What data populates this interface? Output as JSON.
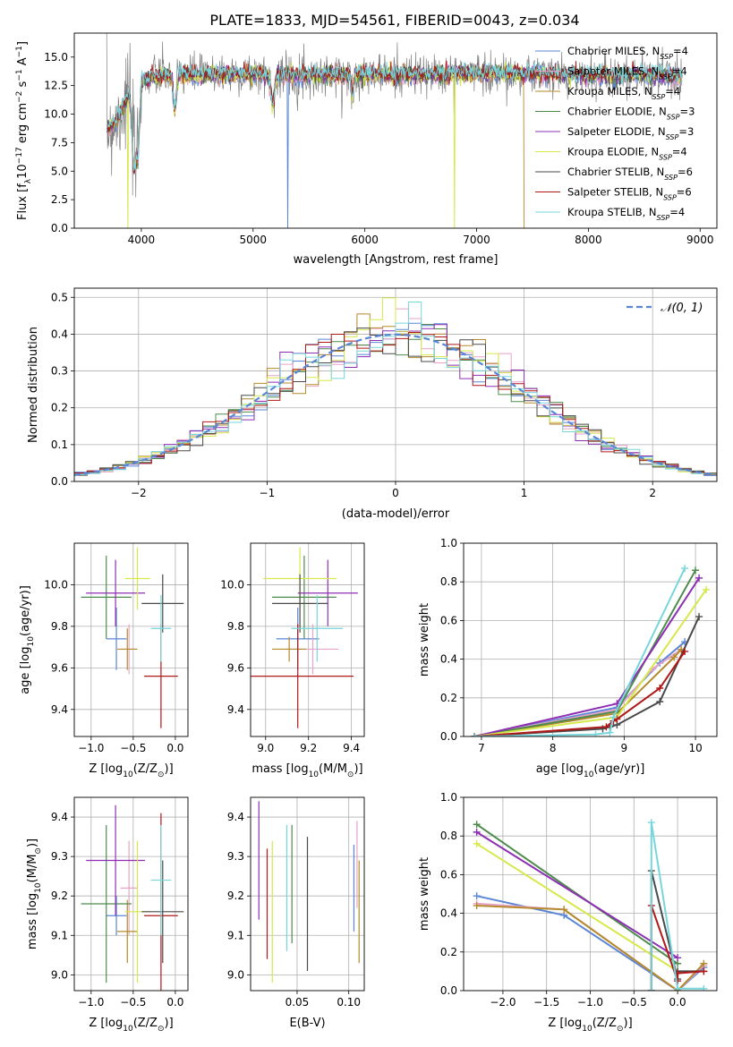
{
  "figure": {
    "title": "PLATE=1833, MJD=54561, FIBERID=0043, z=0.034"
  },
  "legend_entries": [
    {
      "label": "Chabrier MILES, N",
      "sub": "SSP",
      "suffix": "=4",
      "color": "#5b86d6"
    },
    {
      "label": "Salpeter MILES, N",
      "sub": "SSP",
      "suffix": "=4",
      "color": "#e8a2c8"
    },
    {
      "label": "Kroupa MILES, N",
      "sub": "SSP",
      "suffix": "=4",
      "color": "#b58a2c"
    },
    {
      "label": "Chabrier ELODIE, N",
      "sub": "SSP",
      "suffix": "=3",
      "color": "#4e8c4e"
    },
    {
      "label": "Salpeter ELODIE, N",
      "sub": "SSP",
      "suffix": "=3",
      "color": "#8e2fb3"
    },
    {
      "label": "Kroupa ELODIE, N",
      "sub": "SSP",
      "suffix": "=4",
      "color": "#d6e84a"
    },
    {
      "label": "Chabrier STELIB, N",
      "sub": "SSP",
      "suffix": "=6",
      "color": "#4a4a4a"
    },
    {
      "label": "Salpeter STELIB, N",
      "sub": "SSP",
      "suffix": "=6",
      "color": "#b01818"
    },
    {
      "label": "Kroupa STELIB, N",
      "sub": "SSP",
      "suffix": "=4",
      "color": "#76d6dc"
    }
  ],
  "chart_data": [
    {
      "id": "spectrum",
      "type": "line",
      "xlabel": "wavelength [Angstrom, rest frame]",
      "ylabel": "Flux [f",
      "ylabel_sub": "λ",
      "ylabel_rest": "10",
      "ylabel_sup1": "−17",
      "ylabel_mid": " erg cm",
      "ylabel_sup2": "−2",
      "ylabel_mid2": " s",
      "ylabel_sup3": "−1",
      "ylabel_mid3": " A",
      "ylabel_sup4": "−1",
      "ylabel_end": "]",
      "xlim": [
        3400,
        9150
      ],
      "ylim": [
        0,
        17.1
      ],
      "xticks": [
        4000,
        5000,
        6000,
        7000,
        8000,
        9000
      ],
      "yticks": [
        0.0,
        2.5,
        5.0,
        7.5,
        10.0,
        12.5,
        15.0
      ],
      "ytick_labels": [
        "0.0",
        "2.5",
        "5.0",
        "7.5",
        "10.0",
        "12.5",
        "15.0"
      ],
      "xrange_data": [
        3690,
        8840
      ],
      "continuum": [
        [
          3690,
          8.6
        ],
        [
          3800,
          9.8
        ],
        [
          3900,
          12.0
        ],
        [
          4000,
          13.0
        ],
        [
          4200,
          13.4
        ],
        [
          4500,
          13.5
        ],
        [
          5000,
          13.5
        ],
        [
          5500,
          13.4
        ],
        [
          6000,
          13.5
        ],
        [
          6500,
          13.4
        ],
        [
          7000,
          13.6
        ],
        [
          7500,
          13.5
        ],
        [
          8000,
          13.4
        ],
        [
          8500,
          13.4
        ],
        [
          8840,
          13.3
        ]
      ],
      "features": [
        {
          "name": "dip",
          "x": 3935,
          "depth": 7.0,
          "width": 25
        },
        {
          "name": "dip",
          "x": 3970,
          "depth": 5.5,
          "width": 20
        },
        {
          "name": "dip",
          "x": 4300,
          "depth": 3.0,
          "width": 20
        },
        {
          "name": "dip",
          "x": 5175,
          "depth": 2.5,
          "width": 25
        },
        {
          "name": "dip",
          "x": 5890,
          "depth": 2.0,
          "width": 15
        },
        {
          "name": "gap",
          "x": 5310,
          "series": "Chabrier MILES"
        },
        {
          "name": "gap",
          "x": 3880,
          "series": "Kroupa ELODIE"
        },
        {
          "name": "gap",
          "x": 6800,
          "series": "Kroupa ELODIE"
        },
        {
          "name": "cutoff",
          "x": 7420,
          "series": "Kroupa MILES"
        }
      ]
    },
    {
      "id": "residuals",
      "type": "histogram",
      "xlabel": "(data-model)/error",
      "ylabel": "Normed distribution",
      "legend": "𝒩(0, 1)",
      "xlim": [
        -2.5,
        2.5
      ],
      "ylim": [
        0,
        0.525
      ],
      "xticks": [
        -2,
        -1,
        0,
        1,
        2
      ],
      "xtick_labels": [
        "−2",
        "−1",
        "0",
        "1",
        "2"
      ],
      "yticks": [
        0.0,
        0.1,
        0.2,
        0.3,
        0.4,
        0.5
      ],
      "ytick_labels": [
        "0.0",
        "0.1",
        "0.2",
        "0.3",
        "0.4",
        "0.5"
      ],
      "bin_width": 0.1
    },
    {
      "id": "age_vs_z",
      "type": "scatter",
      "xlabel": "Z [log",
      "xlabel_sub": "10",
      "xlabel_rest": "(Z/Z",
      "xlabel_sub2": "⊙",
      "xlabel_end": ")]",
      "ylabel": "age  [log",
      "ylabel_sub": "10",
      "ylabel_rest": "(age/yr)]",
      "xlim": [
        -1.2,
        0.15
      ],
      "ylim": [
        9.27,
        10.2
      ],
      "xticks": [
        -1.0,
        -0.5,
        0.0
      ],
      "xtick_labels": [
        "−1.0",
        "−0.5",
        "0.0"
      ],
      "yticks": [
        9.4,
        9.6,
        9.8,
        10.0
      ],
      "ytick_labels": [
        "9.4",
        "9.6",
        "9.8",
        "10.0"
      ],
      "points": [
        {
          "series": "Chabrier MILES",
          "x": -0.7,
          "y": 9.74,
          "xerr": 0.12,
          "yerr": 0.15
        },
        {
          "series": "Salpeter MILES",
          "x": -0.55,
          "y": 9.69,
          "xerr": 0.1,
          "yerr": 0.12
        },
        {
          "series": "Kroupa MILES",
          "x": -0.57,
          "y": 9.69,
          "xerr": 0.12,
          "yerr": 0.1
        },
        {
          "series": "Chabrier ELODIE",
          "x": -0.82,
          "y": 9.94,
          "xerr": 0.3,
          "yerr": 0.2
        },
        {
          "series": "Salpeter ELODIE",
          "x": -0.71,
          "y": 9.96,
          "xerr": 0.35,
          "yerr": 0.16
        },
        {
          "series": "Kroupa ELODIE",
          "x": -0.45,
          "y": 10.03,
          "xerr": 0.15,
          "yerr": 0.15
        },
        {
          "series": "Chabrier STELIB",
          "x": -0.15,
          "y": 9.91,
          "xerr": 0.25,
          "yerr": 0.14
        },
        {
          "series": "Salpeter STELIB",
          "x": -0.17,
          "y": 9.56,
          "xerr": 0.2,
          "yerr": 0.25
        },
        {
          "series": "Kroupa STELIB",
          "x": -0.17,
          "y": 9.79,
          "xerr": 0.12,
          "yerr": 0.16
        }
      ]
    },
    {
      "id": "age_vs_mass",
      "type": "scatter",
      "xlabel": "mass [log",
      "xlabel_sub": "10",
      "xlabel_rest": "(M/M",
      "xlabel_sub2": "⊙",
      "xlabel_end": ")]",
      "xlim": [
        8.93,
        9.46
      ],
      "ylim": [
        9.27,
        10.2
      ],
      "xticks": [
        9.0,
        9.2,
        9.4
      ],
      "xtick_labels": [
        "9.0",
        "9.2",
        "9.4"
      ],
      "yticks": [
        9.4,
        9.6,
        9.8,
        10.0
      ],
      "ytick_labels": [
        "9.4",
        "9.6",
        "9.8",
        "10.0"
      ],
      "points": [
        {
          "series": "Chabrier MILES",
          "x": 9.15,
          "y": 9.74,
          "xerr": 0.1,
          "yerr": 0.15
        },
        {
          "series": "Salpeter MILES",
          "x": 9.22,
          "y": 9.69,
          "xerr": 0.12,
          "yerr": 0.12
        },
        {
          "series": "Kroupa MILES",
          "x": 9.11,
          "y": 9.69,
          "xerr": 0.08,
          "yerr": 0.06
        },
        {
          "series": "Chabrier ELODIE",
          "x": 9.18,
          "y": 9.94,
          "xerr": 0.15,
          "yerr": 0.2
        },
        {
          "series": "Salpeter ELODIE",
          "x": 9.29,
          "y": 9.96,
          "xerr": 0.14,
          "yerr": 0.16
        },
        {
          "series": "Kroupa ELODIE",
          "x": 9.16,
          "y": 10.03,
          "xerr": 0.17,
          "yerr": 0.15
        },
        {
          "series": "Chabrier STELIB",
          "x": 9.16,
          "y": 9.91,
          "xerr": 0.13,
          "yerr": 0.14
        },
        {
          "series": "Salpeter STELIB",
          "x": 9.15,
          "y": 9.56,
          "xerr": 0.26,
          "yerr": 0.25
        },
        {
          "series": "Kroupa STELIB",
          "x": 9.24,
          "y": 9.79,
          "xerr": 0.12,
          "yerr": 0.16
        }
      ]
    },
    {
      "id": "mass_weight_vs_age",
      "type": "line",
      "xlabel": "age  [log",
      "xlabel_sub": "10",
      "xlabel_rest": "(age/yr)]",
      "ylabel": "mass weight",
      "xlim": [
        6.75,
        10.3
      ],
      "ylim": [
        0,
        1.0
      ],
      "xticks": [
        7,
        8,
        9,
        10
      ],
      "xtick_labels": [
        "7",
        "8",
        "9",
        "10"
      ],
      "yticks": [
        0.0,
        0.2,
        0.4,
        0.6,
        0.8,
        1.0
      ],
      "ytick_labels": [
        "0.0",
        "0.2",
        "0.4",
        "0.6",
        "0.8",
        "1.0"
      ],
      "series": [
        {
          "name": "Chabrier MILES",
          "x": [
            6.9,
            8.9,
            9.5,
            9.85
          ],
          "y": [
            0.0,
            0.15,
            0.38,
            0.49
          ]
        },
        {
          "name": "Salpeter MILES",
          "x": [
            6.9,
            8.9,
            9.4,
            9.8
          ],
          "y": [
            0.0,
            0.14,
            0.35,
            0.45
          ]
        },
        {
          "name": "Kroupa MILES",
          "x": [
            6.9,
            8.9,
            9.7,
            9.8
          ],
          "y": [
            0.0,
            0.12,
            0.41,
            0.45
          ]
        },
        {
          "name": "Chabrier ELODIE",
          "x": [
            6.9,
            8.9,
            10.0
          ],
          "y": [
            0.0,
            0.13,
            0.86
          ]
        },
        {
          "name": "Salpeter ELODIE",
          "x": [
            6.9,
            8.9,
            10.05
          ],
          "y": [
            0.0,
            0.17,
            0.82
          ]
        },
        {
          "name": "Kroupa ELODIE",
          "x": [
            6.9,
            8.9,
            10.15
          ],
          "y": [
            0.0,
            0.1,
            0.76
          ]
        },
        {
          "name": "Chabrier STELIB",
          "x": [
            6.9,
            8.7,
            8.8,
            8.9,
            9.5,
            10.05
          ],
          "y": [
            0.0,
            0.04,
            0.05,
            0.06,
            0.18,
            0.62
          ]
        },
        {
          "name": "Salpeter STELIB",
          "x": [
            6.9,
            8.75,
            8.85,
            8.9,
            9.5,
            9.85
          ],
          "y": [
            0.0,
            0.05,
            0.08,
            0.09,
            0.25,
            0.44
          ]
        },
        {
          "name": "Kroupa STELIB",
          "x": [
            6.9,
            8.6,
            8.8,
            8.85,
            9.85
          ],
          "y": [
            0.0,
            0.01,
            0.02,
            0.1,
            0.87
          ]
        }
      ]
    },
    {
      "id": "mass_vs_z",
      "type": "scatter",
      "xlabel": "Z [log",
      "xlabel_sub": "10",
      "xlabel_rest": "(Z/Z",
      "xlabel_sub2": "⊙",
      "xlabel_end": ")]",
      "ylabel": "mass [log",
      "ylabel_sub": "10",
      "ylabel_rest": "(M/M",
      "ylabel_sub2": "⊙",
      "ylabel_end": ")]",
      "xlim": [
        -1.2,
        0.15
      ],
      "ylim": [
        8.96,
        9.45
      ],
      "xticks": [
        -1.0,
        -0.5,
        0.0
      ],
      "xtick_labels": [
        "−1.0",
        "−0.5",
        "0.0"
      ],
      "yticks": [
        9.0,
        9.1,
        9.2,
        9.3,
        9.4
      ],
      "ytick_labels": [
        "9.0",
        "9.1",
        "9.2",
        "9.3",
        "9.4"
      ],
      "points": [
        {
          "series": "Chabrier MILES",
          "x": -0.7,
          "y": 9.15,
          "xerr": 0.12,
          "yerr": 0.05
        },
        {
          "series": "Salpeter MILES",
          "x": -0.55,
          "y": 9.22,
          "xerr": 0.1,
          "yerr": 0.12
        },
        {
          "series": "Kroupa MILES",
          "x": -0.57,
          "y": 9.11,
          "xerr": 0.12,
          "yerr": 0.08
        },
        {
          "series": "Chabrier ELODIE",
          "x": -0.82,
          "y": 9.18,
          "xerr": 0.3,
          "yerr": 0.2
        },
        {
          "series": "Salpeter ELODIE",
          "x": -0.71,
          "y": 9.29,
          "xerr": 0.35,
          "yerr": 0.14
        },
        {
          "series": "Kroupa ELODIE",
          "x": -0.45,
          "y": 9.16,
          "xerr": 0.15,
          "yerr": 0.18
        },
        {
          "series": "Chabrier STELIB",
          "x": -0.15,
          "y": 9.16,
          "xerr": 0.25,
          "yerr": 0.13
        },
        {
          "series": "Salpeter STELIB",
          "x": -0.17,
          "y": 9.15,
          "xerr": 0.2,
          "yerr": 0.26
        },
        {
          "series": "Kroupa STELIB",
          "x": -0.17,
          "y": 9.24,
          "xerr": 0.12,
          "yerr": 0.14
        }
      ]
    },
    {
      "id": "mass_vs_ebv",
      "type": "scatter",
      "xlabel": "E(B-V)",
      "xlim": [
        0.005,
        0.115
      ],
      "ylim": [
        8.96,
        9.45
      ],
      "xticks": [
        0.05,
        0.1
      ],
      "xtick_labels": [
        "0.05",
        "0.10"
      ],
      "yticks": [
        9.0,
        9.1,
        9.2,
        9.3,
        9.4
      ],
      "ytick_labels": [
        "9.0",
        "9.1",
        "9.2",
        "9.3",
        "9.4"
      ],
      "points": [
        {
          "series": "Chabrier MILES",
          "x": 0.105,
          "y": 9.22,
          "yerr": 0.11
        },
        {
          "series": "Salpeter MILES",
          "x": 0.108,
          "y": 9.28,
          "yerr": 0.11
        },
        {
          "series": "Kroupa MILES",
          "x": 0.11,
          "y": 9.16,
          "yerr": 0.13
        },
        {
          "series": "Chabrier ELODIE",
          "x": 0.045,
          "y": 9.23,
          "yerr": 0.15
        },
        {
          "series": "Salpeter ELODIE",
          "x": 0.013,
          "y": 9.29,
          "yerr": 0.15
        },
        {
          "series": "Kroupa ELODIE",
          "x": 0.026,
          "y": 9.16,
          "yerr": 0.18
        },
        {
          "series": "Chabrier STELIB",
          "x": 0.06,
          "y": 9.18,
          "yerr": 0.17
        },
        {
          "series": "Salpeter STELIB",
          "x": 0.021,
          "y": 9.18,
          "yerr": 0.14
        },
        {
          "series": "Kroupa STELIB",
          "x": 0.04,
          "y": 9.22,
          "yerr": 0.16
        }
      ]
    },
    {
      "id": "mass_weight_vs_z",
      "type": "line",
      "xlabel": "Z [log",
      "xlabel_sub": "10",
      "xlabel_rest": "(Z/Z",
      "xlabel_sub2": "⊙",
      "xlabel_end": ")]",
      "ylabel": "mass weight",
      "xlim": [
        -2.45,
        0.45
      ],
      "ylim": [
        0,
        1.0
      ],
      "xticks": [
        -2.0,
        -1.5,
        -1.0,
        -0.5,
        0.0
      ],
      "xtick_labels": [
        "−2.0",
        "−1.5",
        "−1.0",
        "−0.5",
        "0.0"
      ],
      "yticks": [
        0.0,
        0.2,
        0.4,
        0.6,
        0.8,
        1.0
      ],
      "ytick_labels": [
        "0.0",
        "0.2",
        "0.4",
        "0.6",
        "0.8",
        "1.0"
      ],
      "series": [
        {
          "name": "Chabrier MILES",
          "x": [
            -2.3,
            -1.3,
            0.0,
            0.3
          ],
          "y": [
            0.49,
            0.39,
            0.0,
            0.12
          ]
        },
        {
          "name": "Salpeter MILES",
          "x": [
            -2.3,
            -1.3,
            0.0,
            0.3
          ],
          "y": [
            0.45,
            0.42,
            0.0,
            0.13
          ]
        },
        {
          "name": "Kroupa MILES",
          "x": [
            -2.3,
            -1.3,
            0.0,
            0.3
          ],
          "y": [
            0.44,
            0.42,
            0.0,
            0.14
          ]
        },
        {
          "name": "Chabrier ELODIE",
          "x": [
            -2.3,
            0.0
          ],
          "y": [
            0.86,
            0.14
          ]
        },
        {
          "name": "Salpeter ELODIE",
          "x": [
            -2.3,
            0.0
          ],
          "y": [
            0.82,
            0.17
          ]
        },
        {
          "name": "Kroupa ELODIE",
          "x": [
            -2.3,
            0.0
          ],
          "y": [
            0.76,
            0.1
          ]
        },
        {
          "name": "Chabrier STELIB",
          "x": [
            -0.3,
            -0.3,
            0.0,
            0.0,
            0.3
          ],
          "y": [
            0.0,
            0.62,
            0.06,
            0.1,
            0.1
          ]
        },
        {
          "name": "Salpeter STELIB",
          "x": [
            -0.3,
            -0.3,
            0.0,
            0.0,
            0.3
          ],
          "y": [
            0.0,
            0.44,
            0.05,
            0.09,
            0.1
          ]
        },
        {
          "name": "Kroupa STELIB",
          "x": [
            -0.3,
            -0.3,
            0.0,
            0.3
          ],
          "y": [
            0.0,
            0.87,
            0.01,
            0.01
          ]
        }
      ]
    }
  ]
}
